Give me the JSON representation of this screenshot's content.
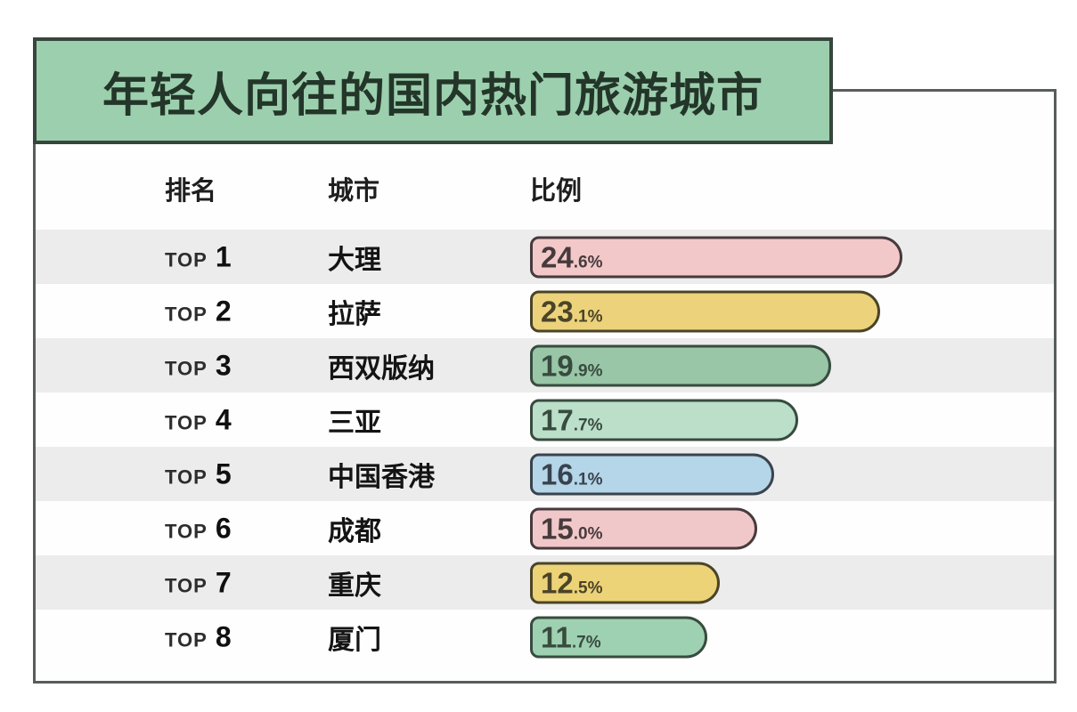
{
  "title": {
    "text": "年轻人向往的国内热门旅游城市"
  },
  "colors": {
    "page_bg": "#ffffff",
    "title_bg": "#9ccfae",
    "title_border": "#37463c",
    "title_text": "#233629",
    "panel_border": "#585d5b",
    "row_stripe": "#ececec"
  },
  "table": {
    "rank_header": "排名",
    "city_header": "城市",
    "ratio_header": "比例",
    "rank_prefix": "TOP"
  },
  "chart_data": {
    "type": "bar",
    "orientation": "horizontal",
    "title": "年轻人向往的国内热门旅游城市",
    "value_unit": "%",
    "xlim": [
      0,
      24.6
    ],
    "grid": "alternating-row-stripes",
    "legend": "none",
    "categories": [
      "大理",
      "拉萨",
      "西双版纳",
      "三亚",
      "中国香港",
      "成都",
      "重庆",
      "厦门"
    ],
    "values": [
      24.6,
      23.1,
      19.9,
      17.7,
      16.1,
      15.0,
      12.5,
      11.7
    ],
    "rows": [
      {
        "rank": 1,
        "city": "大理",
        "value": 24.6,
        "display": "24.6%",
        "bar_fill": "#f2c8c9",
        "bar_border": "#473a3d"
      },
      {
        "rank": 2,
        "city": "拉萨",
        "value": 23.1,
        "display": "23.1%",
        "bar_fill": "#ecd27b",
        "bar_border": "#4a4428"
      },
      {
        "rank": 3,
        "city": "西双版纳",
        "value": 19.9,
        "display": "19.9%",
        "bar_fill": "#98c6a7",
        "bar_border": "#384b3f"
      },
      {
        "rank": 4,
        "city": "三亚",
        "value": 17.7,
        "display": "17.7%",
        "bar_fill": "#bbdfc9",
        "bar_border": "#384b3f"
      },
      {
        "rank": 5,
        "city": "中国香港",
        "value": 16.1,
        "display": "16.1%",
        "bar_fill": "#b5d5e8",
        "bar_border": "#39434e"
      },
      {
        "rank": 6,
        "city": "成都",
        "value": 15.0,
        "display": "15.0%",
        "bar_fill": "#f1c8ca",
        "bar_border": "#473a3d"
      },
      {
        "rank": 7,
        "city": "重庆",
        "value": 12.5,
        "display": "12.5%",
        "bar_fill": "#edd377",
        "bar_border": "#4a4428"
      },
      {
        "rank": 8,
        "city": "厦门",
        "value": 11.7,
        "display": "11.7%",
        "bar_fill": "#9ed1b1",
        "bar_border": "#384b3f"
      }
    ]
  }
}
